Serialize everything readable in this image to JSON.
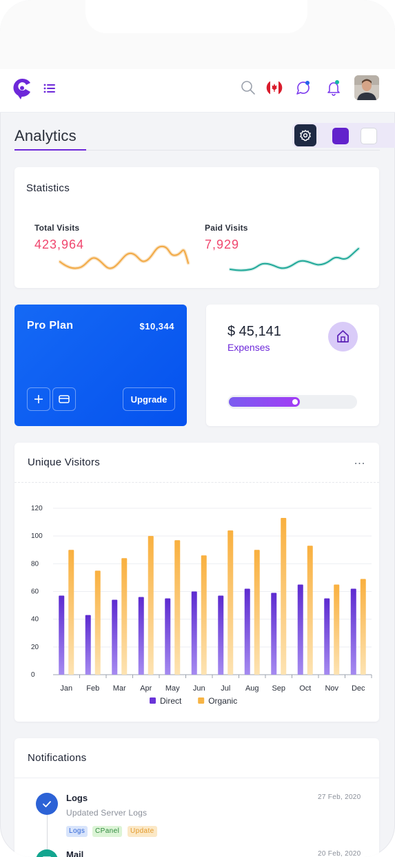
{
  "header": {
    "logo_icon": "brand-c-icon",
    "menu_icon": "hamburger-icon",
    "search_icon": "search-icon",
    "language_flag": "canada-flag-icon",
    "chat_icon": "chat-bubble-icon",
    "bell_icon": "bell-icon",
    "avatar": "user-avatar"
  },
  "page": {
    "title": "Analytics"
  },
  "theme": {
    "settings_icon": "gear-icon",
    "swatches": [
      "#6222cc",
      "#ffffff"
    ]
  },
  "statistics": {
    "title": "Statistics",
    "total_visits": {
      "label": "Total Visits",
      "value": "423,964",
      "sparkline_color": "#f2a945"
    },
    "paid_visits": {
      "label": "Paid Visits",
      "value": "7,929",
      "sparkline_color": "#1fa898"
    }
  },
  "pro_plan": {
    "title": "Pro Plan",
    "price": "$10,344",
    "add_icon": "plus-icon",
    "card_icon": "credit-card-icon",
    "upgrade_label": "Upgrade"
  },
  "expenses": {
    "value": "$ 45,141",
    "label": "Expenses",
    "icon": "home-icon",
    "progress": 0.56
  },
  "unique_visitors": {
    "title": "Unique Visitors",
    "more_label": "..."
  },
  "chart_data": {
    "type": "bar",
    "title": "Unique Visitors",
    "categories": [
      "Jan",
      "Feb",
      "Mar",
      "Apr",
      "May",
      "Jun",
      "Jul",
      "Aug",
      "Sep",
      "Oct",
      "Nov",
      "Dec"
    ],
    "series": [
      {
        "name": "Direct",
        "color": "#6a35d8",
        "values": [
          57,
          43,
          54,
          56,
          55,
          60,
          57,
          62,
          59,
          65,
          55,
          62
        ]
      },
      {
        "name": "Organic",
        "color": "#f7b445",
        "values": [
          90,
          75,
          84,
          100,
          97,
          86,
          104,
          90,
          113,
          93,
          65,
          69
        ]
      }
    ],
    "y_ticks": [
      "0",
      "20",
      "40",
      "60",
      "80",
      "100",
      "120"
    ],
    "ylim": [
      0,
      120
    ],
    "grid": true,
    "legend_position": "bottom"
  },
  "notifications": {
    "title": "Notifications",
    "items": [
      {
        "title": "Logs",
        "subtitle": "Updated Server Logs",
        "date": "27 Feb, 2020",
        "icon": "check-icon",
        "tags": [
          {
            "label": "Logs",
            "color": "#2c62d6",
            "bg": "#d8e4fb"
          },
          {
            "label": "CPanel",
            "color": "#2f8a3e",
            "bg": "#dcf4d6"
          },
          {
            "label": "Update",
            "color": "#e39a2c",
            "bg": "#fbe8c6"
          }
        ]
      },
      {
        "title": "Mail",
        "date": "20 Feb, 2020",
        "icon": "mail-icon"
      }
    ]
  }
}
